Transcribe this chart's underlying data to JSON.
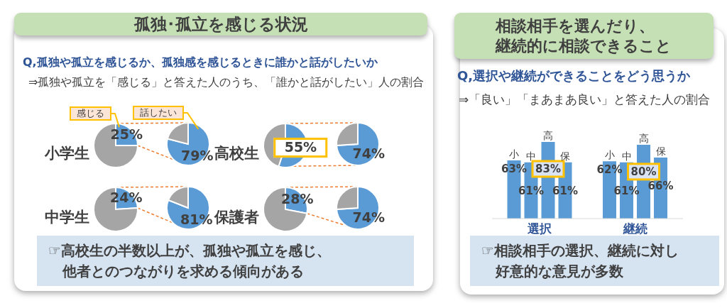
{
  "chart_data": [
    {
      "type": "other",
      "title": "孤独･孤立を感じる状況",
      "subtitle": "Q,孤独や孤立を感じるか、孤独感を感じるときに誰かと話がしたいか",
      "annotations": [
        "⇒孤独や孤立を「感じる」と答えた人のうち、「誰かと話がしたい」人の割合",
        "☞高校生の半数以上が、孤独や孤立を感じ、他者とのつながりを求める傾向がある"
      ]
    },
    {
      "type": "pie",
      "title": "小学生",
      "categories": [
        "感じる",
        null
      ],
      "values": [
        25,
        75
      ],
      "colors": [
        "#5b9bd5",
        "#a5a5a5"
      ],
      "value_labels": [
        "25%",
        null
      ]
    },
    {
      "type": "pie",
      "categories": [
        "話したい",
        null
      ],
      "values": [
        79,
        21
      ],
      "colors": [
        "#5b9bd5",
        "#a5a5a5"
      ],
      "value_labels": [
        "79%",
        null
      ]
    },
    {
      "type": "pie",
      "title": "高校生",
      "categories": [
        null,
        null
      ],
      "values": [
        55,
        45
      ],
      "colors": [
        "#5b9bd5",
        "#a5a5a5"
      ],
      "value_labels": [
        "55%",
        null
      ]
    },
    {
      "type": "pie",
      "categories": [
        null,
        null
      ],
      "values": [
        74,
        26
      ],
      "colors": [
        "#5b9bd5",
        "#a5a5a5"
      ],
      "value_labels": [
        "74%",
        null
      ]
    },
    {
      "type": "pie",
      "title": "中学生",
      "categories": [
        null,
        null
      ],
      "values": [
        24,
        76
      ],
      "colors": [
        "#5b9bd5",
        "#a5a5a5"
      ],
      "value_labels": [
        "24%",
        null
      ]
    },
    {
      "type": "pie",
      "categories": [
        null,
        null
      ],
      "values": [
        81,
        19
      ],
      "colors": [
        "#5b9bd5",
        "#a5a5a5"
      ],
      "value_labels": [
        "81%",
        null
      ]
    },
    {
      "type": "pie",
      "title": "保護者",
      "categories": [
        null,
        null
      ],
      "values": [
        28,
        72
      ],
      "colors": [
        "#5b9bd5",
        "#a5a5a5"
      ],
      "value_labels": [
        "28%",
        null
      ]
    },
    {
      "type": "pie",
      "categories": [
        null,
        null
      ],
      "values": [
        74,
        26
      ],
      "colors": [
        "#5b9bd5",
        "#a5a5a5"
      ],
      "value_labels": [
        "74%",
        null
      ]
    },
    {
      "type": "bar",
      "title": "相談相手を選んだり、継続的に相談できること",
      "subtitle": "Q,選択や継続ができることをどう思うか",
      "annotations": [
        "⇒「良い」「まあまあ良い」と答えた人の割合",
        "☞相談相手の選択、継続に対し好意的な意見が多数"
      ],
      "categories": [
        "選択",
        "継続"
      ],
      "series": [
        {
          "name": "小",
          "color": "#5b9bd5",
          "values": [
            63,
            62
          ],
          "value_labels": [
            "63%",
            "62%"
          ]
        },
        {
          "name": "中",
          "color": "#5b9bd5",
          "values": [
            61,
            61
          ],
          "value_labels": [
            "61%",
            "61%"
          ]
        },
        {
          "name": "高",
          "color": "#5b9bd5",
          "values": [
            83,
            80
          ],
          "value_labels": [
            "83%",
            "80%"
          ]
        },
        {
          "name": "保",
          "color": "#5b9bd5",
          "values": [
            61,
            66
          ],
          "value_labels": [
            "61%",
            "66%"
          ]
        }
      ],
      "tick_labels": "x"
    }
  ]
}
